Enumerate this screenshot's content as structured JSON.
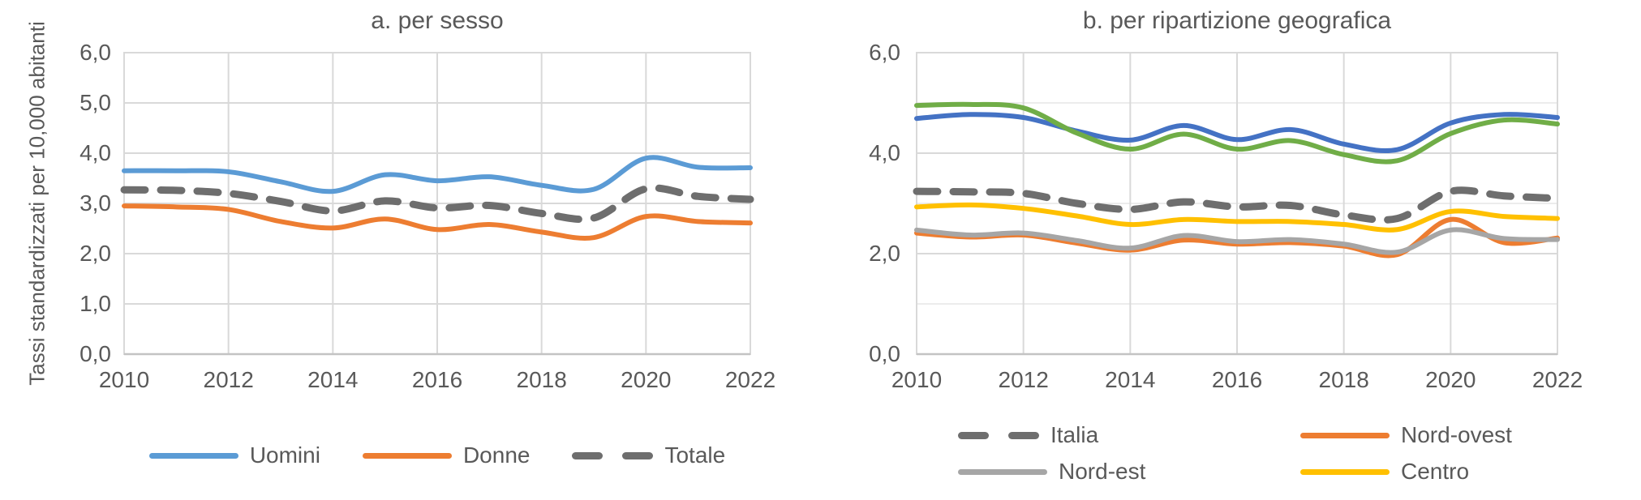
{
  "page": {
    "background": "#FFFFFF",
    "text_color": "#595959",
    "grid_color": "#D9D9D9",
    "grid_minor_color": "#ECECEC"
  },
  "chart_data": [
    {
      "type": "line",
      "title": "a. per sesso",
      "ylabel": "Tassi standardizzati per 10,000 abitanti",
      "xlabel": "",
      "x": [
        2010,
        2011,
        2012,
        2013,
        2014,
        2015,
        2016,
        2017,
        2018,
        2019,
        2020,
        2021,
        2022
      ],
      "xlim": [
        2010,
        2022
      ],
      "ylim": [
        0,
        6
      ],
      "x_tick_labels": [
        "2010",
        "2012",
        "2014",
        "2016",
        "2018",
        "2020",
        "2022"
      ],
      "y_tick_labels": [
        "0,0",
        "1,0",
        "2,0",
        "3,0",
        "4,0",
        "5,0",
        "6,0"
      ],
      "grid": true,
      "legend_position": "bottom",
      "series": [
        {
          "name": "Uomini",
          "color": "#5B9BD5",
          "dashed": false,
          "values": [
            3.65,
            3.65,
            3.63,
            3.43,
            3.24,
            3.57,
            3.45,
            3.53,
            3.36,
            3.28,
            3.9,
            3.72,
            3.71
          ]
        },
        {
          "name": "Donne",
          "color": "#ED7D31",
          "dashed": false,
          "values": [
            2.95,
            2.93,
            2.88,
            2.64,
            2.51,
            2.69,
            2.48,
            2.58,
            2.43,
            2.32,
            2.74,
            2.64,
            2.61
          ]
        },
        {
          "name": "Totale",
          "color": "#6E6E6E",
          "dashed": true,
          "values": [
            3.27,
            3.26,
            3.2,
            3.04,
            2.85,
            3.05,
            2.91,
            2.96,
            2.8,
            2.71,
            3.29,
            3.14,
            3.08
          ]
        }
      ],
      "legend": [
        {
          "label": "Uomini",
          "color": "#5B9BD5",
          "dashed": false
        },
        {
          "label": "Donne",
          "color": "#ED7D31",
          "dashed": false
        },
        {
          "label": "Totale",
          "color": "#6E6E6E",
          "dashed": true
        }
      ]
    },
    {
      "type": "line",
      "title": "b. per ripartizione geografica",
      "ylabel": "",
      "xlabel": "",
      "x": [
        2010,
        2011,
        2012,
        2013,
        2014,
        2015,
        2016,
        2017,
        2018,
        2019,
        2020,
        2021,
        2022
      ],
      "xlim": [
        2010,
        2022
      ],
      "ylim": [
        0,
        6
      ],
      "x_tick_labels": [
        "2010",
        "2012",
        "2014",
        "2016",
        "2018",
        "2020",
        "2022"
      ],
      "y_tick_labels": [
        "0,0",
        "2,0",
        "4,0",
        "6,0"
      ],
      "grid": true,
      "legend_position": "bottom",
      "series": [
        {
          "name": "",
          "color": "#4472C4",
          "dashed": false,
          "values": [
            4.69,
            4.77,
            4.71,
            4.44,
            4.26,
            4.55,
            4.27,
            4.47,
            4.18,
            4.07,
            4.6,
            4.77,
            4.71
          ]
        },
        {
          "name": "",
          "color": "#70AD47",
          "dashed": false,
          "values": [
            4.95,
            4.97,
            4.9,
            4.4,
            4.08,
            4.38,
            4.08,
            4.25,
            3.97,
            3.85,
            4.39,
            4.66,
            4.58
          ]
        },
        {
          "name": "Italia",
          "color": "#6E6E6E",
          "dashed": true,
          "values": [
            3.24,
            3.23,
            3.2,
            3.0,
            2.88,
            3.03,
            2.93,
            2.96,
            2.77,
            2.7,
            3.24,
            3.15,
            3.1
          ]
        },
        {
          "name": "Nord-ovest",
          "color": "#ED7D31",
          "dashed": false,
          "values": [
            2.41,
            2.33,
            2.37,
            2.21,
            2.07,
            2.27,
            2.19,
            2.22,
            2.15,
            1.98,
            2.68,
            2.22,
            2.31
          ]
        },
        {
          "name": "Nord-est",
          "color": "#A6A6A6",
          "dashed": false,
          "values": [
            2.47,
            2.37,
            2.41,
            2.26,
            2.11,
            2.36,
            2.24,
            2.28,
            2.19,
            2.03,
            2.47,
            2.3,
            2.28
          ]
        },
        {
          "name": "Centro",
          "color": "#FFC000",
          "dashed": false,
          "values": [
            2.93,
            2.97,
            2.9,
            2.75,
            2.58,
            2.68,
            2.64,
            2.64,
            2.58,
            2.48,
            2.84,
            2.74,
            2.7
          ]
        }
      ],
      "legend": [
        {
          "label": "Italia",
          "color": "#6E6E6E",
          "dashed": true
        },
        {
          "label": "Nord-ovest",
          "color": "#ED7D31",
          "dashed": false
        },
        {
          "label": "Nord-est",
          "color": "#A6A6A6",
          "dashed": false
        },
        {
          "label": "Centro",
          "color": "#FFC000",
          "dashed": false
        }
      ]
    }
  ]
}
